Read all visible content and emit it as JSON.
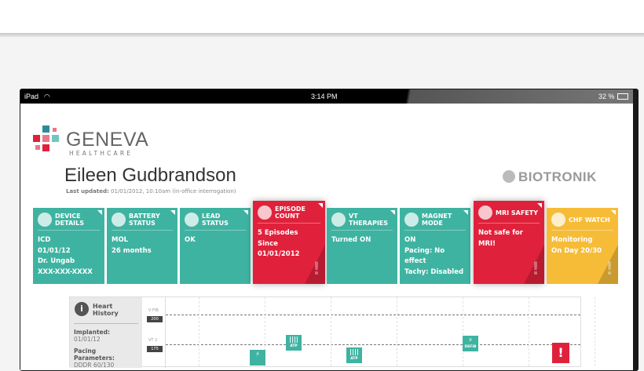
{
  "status_bar": {
    "device": "iPad",
    "time": "3:14 PM",
    "battery": "32 %",
    "icons": [
      "wifi-icon",
      "battery-icon"
    ]
  },
  "brand": {
    "name": "GENEVA",
    "sub": "HEALTHCARE",
    "partner": "BIOTRONIK"
  },
  "patient": {
    "name": "Eileen Gudbrandson",
    "updated_label": "Last updated:",
    "updated_value": "01/01/2012, 10:10am (in-office interrogation)"
  },
  "colors": {
    "teal": "#3fb3a1",
    "red": "#e0213b",
    "yellow": "#f6bc38"
  },
  "cards": [
    {
      "title": "Device Details",
      "icon": "lightning-shield-icon",
      "lines": [
        "ICD",
        "01/01/12",
        "Dr. Ungab",
        "XXX-XXX-XXXX"
      ],
      "status": "teal"
    },
    {
      "title": "Battery Status",
      "icon": "battery-icon",
      "lines": [
        "MOL",
        "26 months"
      ],
      "status": "teal"
    },
    {
      "title": "Lead Status",
      "icon": "lead-icon",
      "lines": [
        "OK"
      ],
      "status": "teal"
    },
    {
      "title": "Episode Count",
      "icon": "heart-hash-icon",
      "lines": [
        "5 Episodes",
        "Since 01/01/2012"
      ],
      "status": "red"
    },
    {
      "title": "VT Therapies",
      "icon": "heart-lightning-icon",
      "lines": [
        "Turned ON"
      ],
      "status": "teal"
    },
    {
      "title": "Magnet Mode",
      "icon": "magnet-icon",
      "lines": [
        "ON",
        "Pacing: No effect",
        "Tachy: Disabled"
      ],
      "status": "teal"
    },
    {
      "title": "MRI Safety",
      "icon": "mri-icon",
      "lines": [
        "Not safe for MRI!"
      ],
      "status": "red"
    },
    {
      "title": "CHF Watch",
      "icon": "clock-icon",
      "lines": [
        "Monitoring",
        "On Day 20/30"
      ],
      "status": "yellow"
    }
  ],
  "history": {
    "title": "Heart History",
    "implanted_label": "Implanted:",
    "implanted_value": "01/01/12",
    "pacing_label": "Pacing Parameters:",
    "pacing_value": "DDDR 60/130",
    "zones": [
      {
        "label": "V FIB",
        "value": "200"
      },
      {
        "label": "VT 2",
        "value": "175"
      }
    ],
    "markers": [
      {
        "type": "shock",
        "label": ""
      },
      {
        "type": "ATP",
        "label": "ATP"
      },
      {
        "type": "ATP",
        "label": "ATP"
      },
      {
        "type": "shock",
        "label": "DEFIB"
      },
      {
        "type": "alert",
        "label": "!"
      }
    ]
  }
}
